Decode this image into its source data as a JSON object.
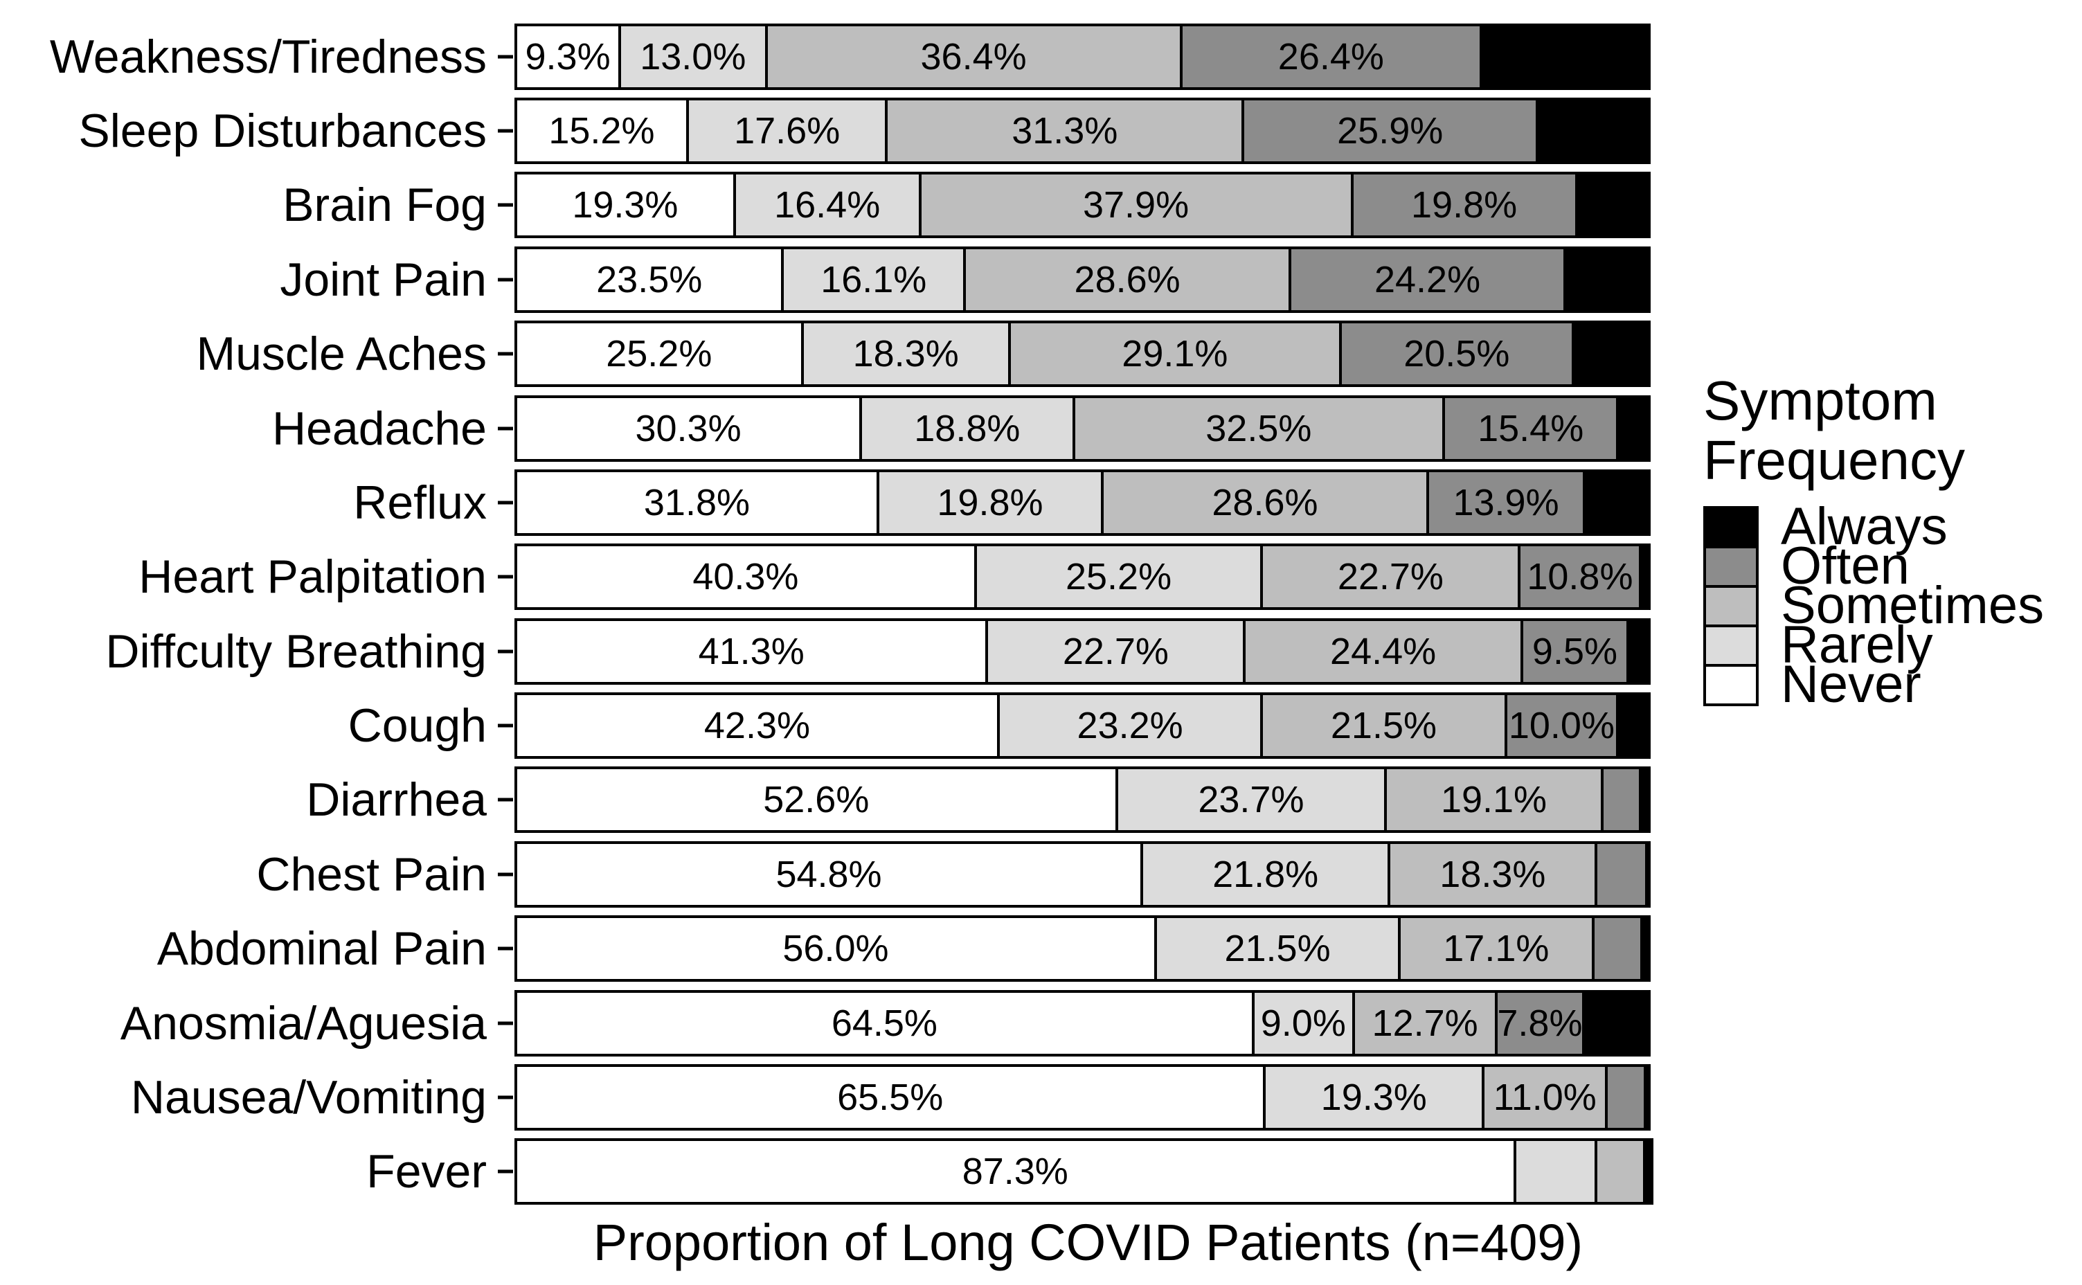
{
  "figure": {
    "background": "#ffffff",
    "text_color": "#000000"
  },
  "chart_data": {
    "type": "bar",
    "subtype": "horizontal-stacked-100pct",
    "title": "",
    "xlabel": "Proportion of Long COVID Patients (n=409)",
    "ylabel": "",
    "xlim": [
      0,
      100
    ],
    "grid": false,
    "bar_outline_color": "#000000",
    "categories": [
      "Weakness/Tiredness",
      "Sleep Disturbances",
      "Brain Fog",
      "Joint Pain",
      "Muscle Aches",
      "Headache",
      "Reflux",
      "Heart Palpitation",
      "Diffculty Breathing",
      "Cough",
      "Diarrhea",
      "Chest Pain",
      "Abdominal Pain",
      "Anosmia/Aguesia",
      "Nausea/Vomiting",
      "Fever"
    ],
    "series": [
      {
        "name": "Never",
        "color": "#ffffff",
        "values": [
          9.3,
          15.2,
          19.3,
          23.5,
          25.2,
          30.3,
          31.8,
          40.3,
          41.3,
          42.3,
          52.6,
          54.8,
          56.0,
          64.5,
          65.5,
          87.3
        ]
      },
      {
        "name": "Rarely",
        "color": "#dcdcdc",
        "values": [
          13.0,
          17.6,
          16.4,
          16.1,
          18.3,
          18.8,
          19.8,
          25.2,
          22.7,
          23.2,
          23.7,
          21.8,
          21.5,
          9.0,
          19.3,
          7.3
        ]
      },
      {
        "name": "Sometimes",
        "color": "#bebebe",
        "values": [
          36.4,
          31.3,
          37.9,
          28.6,
          29.1,
          32.5,
          28.6,
          22.7,
          24.4,
          21.5,
          19.1,
          18.3,
          17.1,
          12.7,
          11.0,
          4.5
        ]
      },
      {
        "name": "Often",
        "color": "#8c8c8c",
        "values": [
          26.4,
          25.9,
          19.8,
          24.2,
          20.5,
          15.4,
          13.9,
          10.8,
          9.5,
          10.0,
          3.6,
          4.6,
          4.5,
          7.8,
          3.6,
          0.0
        ]
      },
      {
        "name": "Always",
        "color": "#000000",
        "values": [
          14.9,
          10.0,
          6.6,
          7.6,
          6.9,
          3.0,
          5.9,
          1.0,
          2.1,
          3.0,
          1.0,
          0.5,
          0.9,
          6.0,
          0.6,
          0.9
        ]
      }
    ],
    "data_labels": {
      "format": "{value}%",
      "min_value_shown": 7.5,
      "hidden_for_series": [
        "Always"
      ]
    },
    "legend": {
      "title": "Symptom Frequency",
      "position": "right",
      "entries": [
        "Always",
        "Often",
        "Sometimes",
        "Rarely",
        "Never"
      ]
    }
  }
}
